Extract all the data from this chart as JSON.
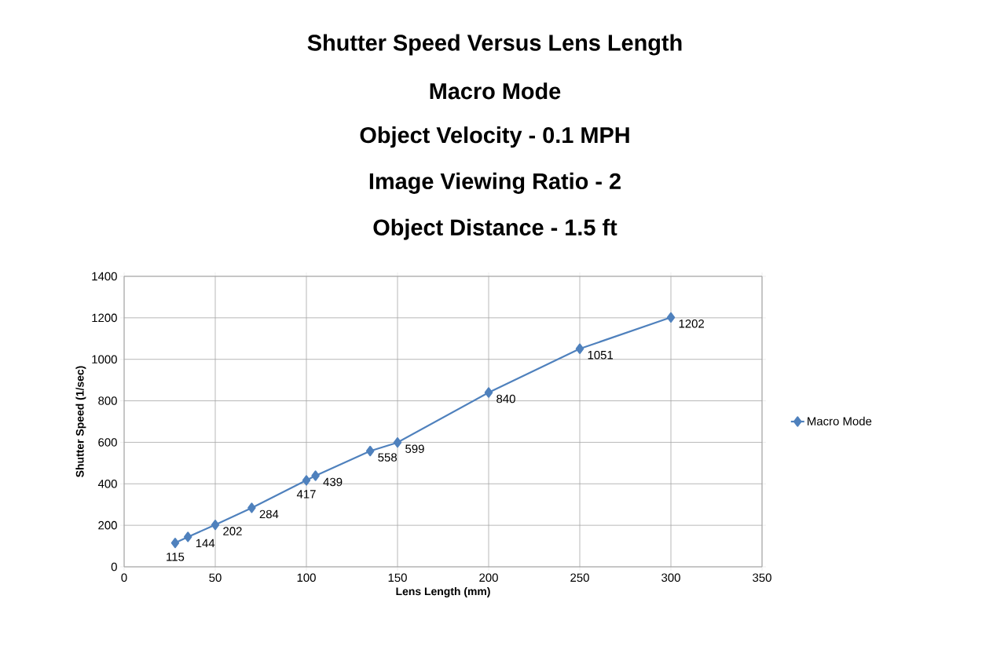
{
  "chart_data": {
    "type": "line",
    "title": "Shutter Speed Versus Lens Length",
    "subtitle": "Macro Mode",
    "annotations": [
      "Object Velocity - 0.1 MPH",
      "Image Viewing Ratio - 2",
      "Object Distance - 1.5 ft"
    ],
    "xlabel": "Lens Length (mm)",
    "ylabel": "Shutter Speed (1/sec)",
    "x": [
      28,
      35,
      50,
      70,
      100,
      105,
      135,
      150,
      200,
      250,
      300
    ],
    "series": [
      {
        "name": "Macro Mode",
        "color": "#4f81bd",
        "values": [
          115,
          144,
          202,
          284,
          417,
          439,
          558,
          599,
          840,
          1051,
          1202
        ]
      }
    ],
    "xlim": [
      0,
      350
    ],
    "ylim": [
      0,
      1400
    ],
    "xticks": [
      0,
      50,
      100,
      150,
      200,
      250,
      300,
      350
    ],
    "yticks": [
      0,
      200,
      400,
      600,
      800,
      1000,
      1200,
      1400
    ],
    "grid": true,
    "legend": "right",
    "marker": "diamond",
    "line_style": "solid",
    "data_labels": true
  }
}
